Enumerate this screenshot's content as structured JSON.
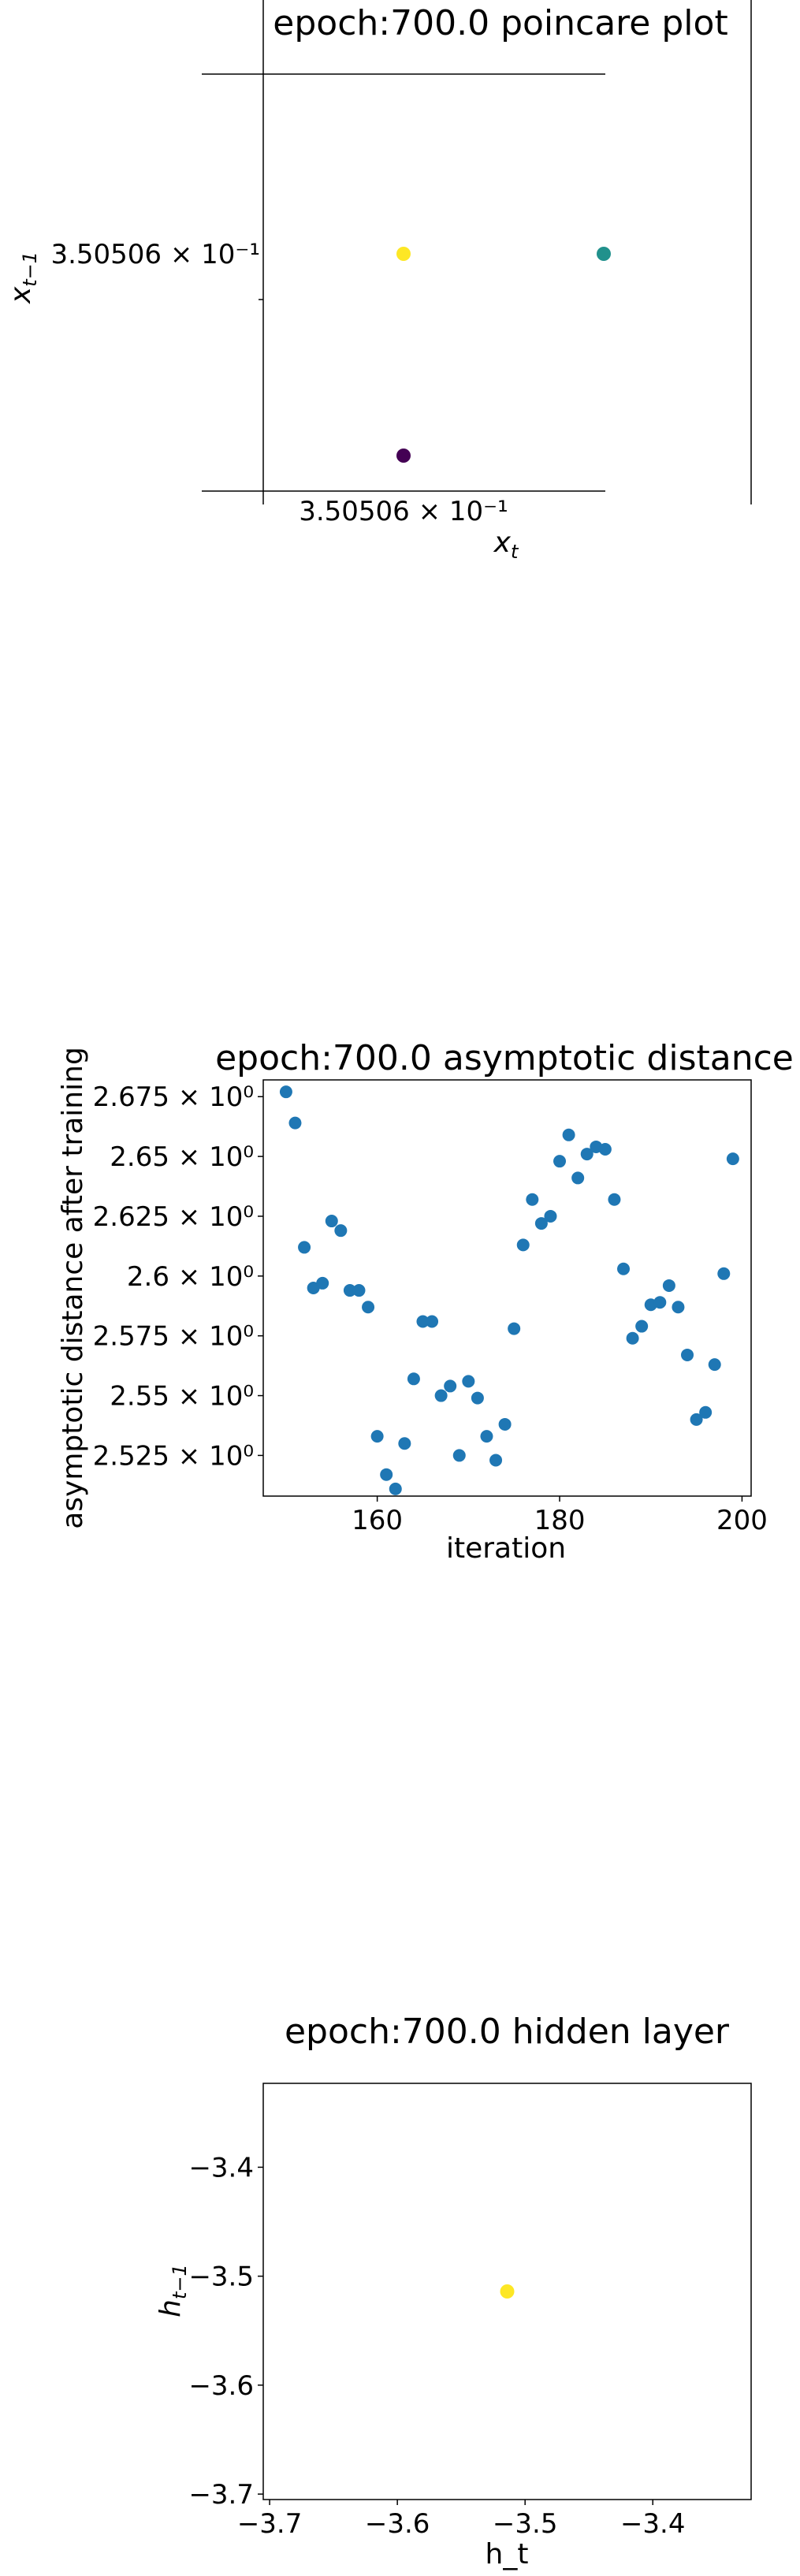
{
  "chart_data": [
    {
      "type": "scatter",
      "title": "epoch:700.0 poincare plot",
      "xlabel": "x_t",
      "ylabel": "x_{t-1}",
      "xtick_label": "3.50506 × 10⁻¹",
      "ytick_label": "3.50506 × 10⁻¹",
      "points": [
        {
          "x": 0.350506,
          "y": 0.350506,
          "color": "#fde725"
        },
        {
          "x": 0.350508,
          "y": 0.350506,
          "color": "#21918c"
        },
        {
          "x": 0.350506,
          "y": 0.350504,
          "color": "#440154"
        }
      ]
    },
    {
      "type": "scatter",
      "title": "epoch:700.0 asymptotic distance",
      "xlabel": "iteration",
      "ylabel": "asymptotic distance after training",
      "xlim": [
        147.5,
        201
      ],
      "ylim": [
        2.508,
        2.682
      ],
      "xticks": [
        160,
        180,
        200
      ],
      "yticks": [
        {
          "value": 2.525,
          "label": "2.525 × 10⁰"
        },
        {
          "value": 2.55,
          "label": "2.55 × 10⁰"
        },
        {
          "value": 2.575,
          "label": "2.575 × 10⁰"
        },
        {
          "value": 2.6,
          "label": "2.6 × 10⁰"
        },
        {
          "value": 2.625,
          "label": "2.625 × 10⁰"
        },
        {
          "value": 2.65,
          "label": "2.65 × 10⁰"
        },
        {
          "value": 2.675,
          "label": "2.675 × 10⁰"
        }
      ],
      "color": "#1f77b4",
      "x": [
        150,
        151,
        152,
        153,
        154,
        155,
        156,
        157,
        158,
        159,
        160,
        161,
        162,
        163,
        164,
        165,
        166,
        167,
        168,
        169,
        170,
        171,
        172,
        173,
        174,
        175,
        176,
        177,
        178,
        179,
        180,
        181,
        182,
        183,
        184,
        185,
        186,
        187,
        188,
        189,
        190,
        191,
        192,
        193,
        194,
        195,
        196,
        197,
        198,
        199
      ],
      "y": [
        2.677,
        2.664,
        2.612,
        2.595,
        2.597,
        2.623,
        2.619,
        2.594,
        2.594,
        2.587,
        2.533,
        2.517,
        2.511,
        2.53,
        2.557,
        2.581,
        2.581,
        2.55,
        2.554,
        2.525,
        2.556,
        2.549,
        2.533,
        2.523,
        2.538,
        2.578,
        2.613,
        2.632,
        2.622,
        2.625,
        2.648,
        2.659,
        2.641,
        2.651,
        2.654,
        2.653,
        2.632,
        2.603,
        2.574,
        2.579,
        2.588,
        2.589,
        2.596,
        2.587,
        2.567,
        2.54,
        2.543,
        2.563,
        2.601,
        2.649
      ]
    },
    {
      "type": "scatter",
      "title": "epoch:700.0 hidden layer",
      "xlabel": "h_t",
      "ylabel": "h_{t-1}",
      "xlim": [
        -3.705,
        -3.323
      ],
      "ylim": [
        -3.705,
        -3.323
      ],
      "xticks": [
        {
          "value": -3.7,
          "label": "−3.7"
        },
        {
          "value": -3.6,
          "label": "−3.6"
        },
        {
          "value": -3.5,
          "label": "−3.5"
        },
        {
          "value": -3.4,
          "label": "−3.4"
        }
      ],
      "yticks": [
        {
          "value": -3.4,
          "label": "−3.4"
        },
        {
          "value": -3.5,
          "label": "−3.5"
        },
        {
          "value": -3.6,
          "label": "−3.6"
        },
        {
          "value": -3.7,
          "label": "−3.7"
        }
      ],
      "points": [
        {
          "x": -3.514,
          "y": -3.514,
          "color": "#fde725"
        }
      ]
    }
  ]
}
